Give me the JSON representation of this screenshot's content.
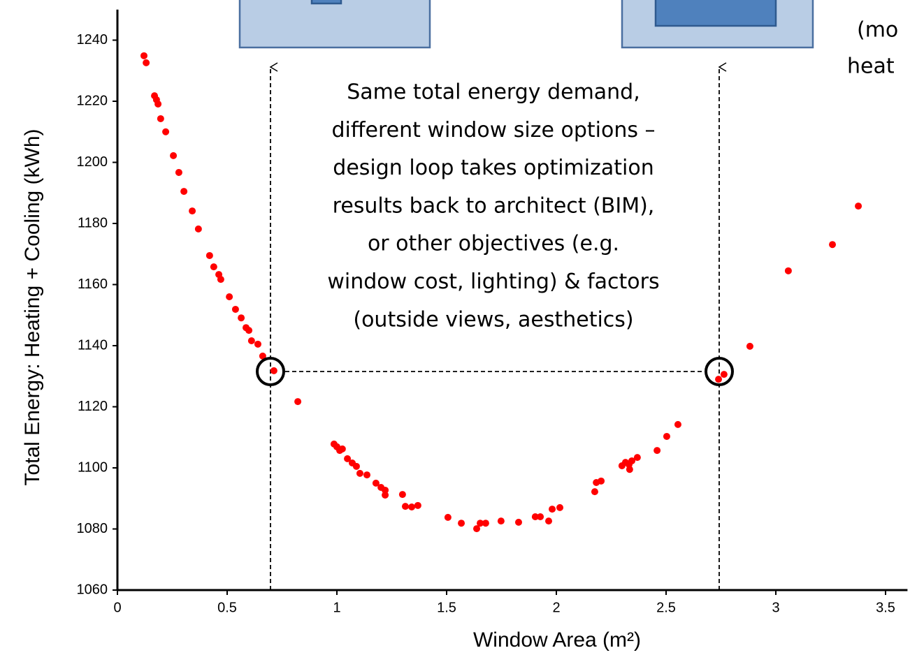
{
  "chart_data": {
    "type": "scatter",
    "xlabel": "Window Area (m²)",
    "ylabel": "Total Energy: Heating + Cooling (kWh)",
    "annotation": [
      "Same total energy demand,",
      "different window size options –",
      "design loop takes optimization",
      "results back to architect (BIM),",
      "or other objectives (e.g.",
      "window cost, lighting) & factors",
      "(outside views, aesthetics)"
    ],
    "corner_text": [
      "(mo",
      "heat"
    ],
    "color": "#ff0000",
    "xlim": [
      0,
      3.6
    ],
    "ylim": [
      1060,
      1250
    ],
    "xticks": [
      0,
      0.5,
      1,
      1.5,
      2,
      2.5,
      3,
      3.5
    ],
    "yticks": [
      1060,
      1080,
      1100,
      1120,
      1140,
      1160,
      1180,
      1200,
      1220,
      1240
    ],
    "x": [
      0.121,
      0.131,
      0.169,
      0.178,
      0.185,
      0.197,
      0.22,
      0.255,
      0.28,
      0.303,
      0.341,
      0.369,
      0.42,
      0.439,
      0.462,
      0.471,
      0.51,
      0.538,
      0.564,
      0.586,
      0.599,
      0.611,
      0.64,
      0.662,
      0.713,
      0.822,
      0.987,
      1.0,
      1.013,
      1.025,
      1.048,
      1.07,
      1.089,
      1.105,
      1.137,
      1.178,
      1.201,
      1.22,
      1.22,
      1.299,
      1.312,
      1.341,
      1.369,
      1.506,
      1.567,
      1.637,
      1.653,
      1.678,
      1.748,
      1.828,
      1.904,
      1.927,
      1.965,
      1.981,
      2.016,
      2.175,
      2.182,
      2.204,
      2.299,
      2.315,
      2.331,
      2.334,
      2.344,
      2.369,
      2.459,
      2.503,
      2.554,
      2.739,
      2.764,
      2.882,
      3.057,
      3.258,
      3.376
    ],
    "values": [
      1234.9,
      1232.6,
      1221.8,
      1220.5,
      1219.1,
      1214.3,
      1210,
      1202.2,
      1196.7,
      1190.5,
      1184.1,
      1178.2,
      1169.5,
      1165.8,
      1163.3,
      1161.7,
      1156,
      1151.9,
      1149.1,
      1145.9,
      1145,
      1141.6,
      1140.5,
      1136.6,
      1131.8,
      1121.7,
      1107.8,
      1106.9,
      1105.7,
      1106.2,
      1103,
      1101.6,
      1100.5,
      1098.2,
      1097.7,
      1095,
      1093.6,
      1092.7,
      1091.1,
      1091.3,
      1087.4,
      1087.2,
      1087.7,
      1083.8,
      1081.9,
      1080.1,
      1081.9,
      1081.9,
      1082.6,
      1082.2,
      1084,
      1084,
      1082.6,
      1086.5,
      1087,
      1092.2,
      1095.2,
      1095.7,
      1100.7,
      1101.8,
      1101.1,
      1099.5,
      1102.3,
      1103.4,
      1105.7,
      1110.3,
      1114.2,
      1129,
      1130.6,
      1139.8,
      1164.5,
      1173.1,
      1185.7
    ]
  }
}
